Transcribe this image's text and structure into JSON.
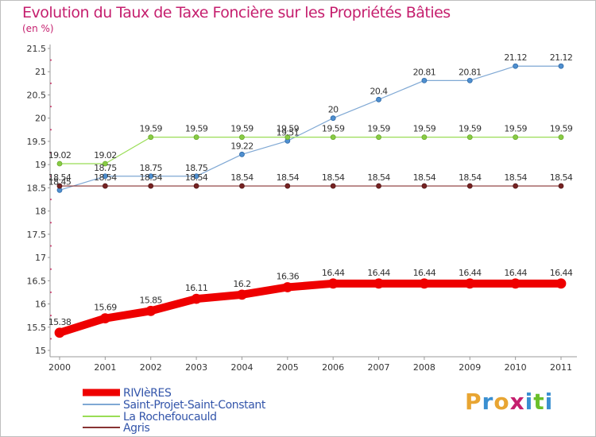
{
  "header": {
    "title": "Evolution du Taux de Taxe Foncière sur les Propriétés Bâties",
    "unit": "(en %)"
  },
  "brand": {
    "text": "Proxiti",
    "colors": [
      "#e8a532",
      "#3a8fd1",
      "#e8a532",
      "#c51f6e",
      "#3a8fd1",
      "#6abf2a",
      "#3a8fd1"
    ]
  },
  "chart_data": {
    "type": "line",
    "title": "Evolution du Taux de Taxe Foncière sur les Propriétés Bâties",
    "ylabel": "(en %)",
    "xlabel": "",
    "x": [
      "2000",
      "2001",
      "2002",
      "2003",
      "2004",
      "2005",
      "2006",
      "2007",
      "2008",
      "2009",
      "2010",
      "2011"
    ],
    "ylim": [
      15,
      21.5
    ],
    "yticks": [
      "15",
      "15.5",
      "16",
      "16.5",
      "17",
      "17.5",
      "18",
      "18.5",
      "19",
      "19.5",
      "20",
      "20.5",
      "21",
      "21.5"
    ],
    "grid": false,
    "legend_position": "bottom-left",
    "series": [
      {
        "name": "RIVIèRES",
        "color": "#ee0000",
        "values": [
          15.38,
          15.69,
          15.85,
          16.11,
          16.2,
          16.36,
          16.44,
          16.44,
          16.44,
          16.44,
          16.44,
          16.44
        ],
        "labels": [
          "15.38",
          "15.69",
          "15.85",
          "16.11",
          "16.2",
          "16.36",
          "16.44",
          "16.44",
          "16.44",
          "16.44",
          "16.44",
          "16.44"
        ]
      },
      {
        "name": "Saint-Projet-Saint-Constant",
        "color": "#7fa8d4",
        "values": [
          18.45,
          18.75,
          18.75,
          18.75,
          19.22,
          19.51,
          20,
          20.4,
          20.81,
          20.81,
          21.12,
          21.12
        ],
        "labels": [
          "18.45",
          "18.75",
          "18.75",
          "18.75",
          "19.22",
          "19.51",
          "20",
          "20.4",
          "20.81",
          "20.81",
          "21.12",
          "21.12"
        ]
      },
      {
        "name": "La Rochefoucauld",
        "color": "#99dd55",
        "values": [
          19.02,
          19.02,
          19.59,
          19.59,
          19.59,
          19.59,
          19.59,
          19.59,
          19.59,
          19.59,
          19.59,
          19.59
        ],
        "labels": [
          "19.02",
          "19.02",
          "19.59",
          "19.59",
          "19.59",
          "19.59",
          "19.59",
          "19.59",
          "19.59",
          "19.59",
          "19.59",
          "19.59"
        ]
      },
      {
        "name": "Agris",
        "color": "#883333",
        "values": [
          18.54,
          18.54,
          18.54,
          18.54,
          18.54,
          18.54,
          18.54,
          18.54,
          18.54,
          18.54,
          18.54,
          18.54
        ],
        "labels": [
          "18.54",
          "18.54",
          "18.54",
          "18.54",
          "18.54",
          "18.54",
          "18.54",
          "18.54",
          "18.54",
          "18.54",
          "18.54",
          "18.54"
        ]
      }
    ]
  }
}
